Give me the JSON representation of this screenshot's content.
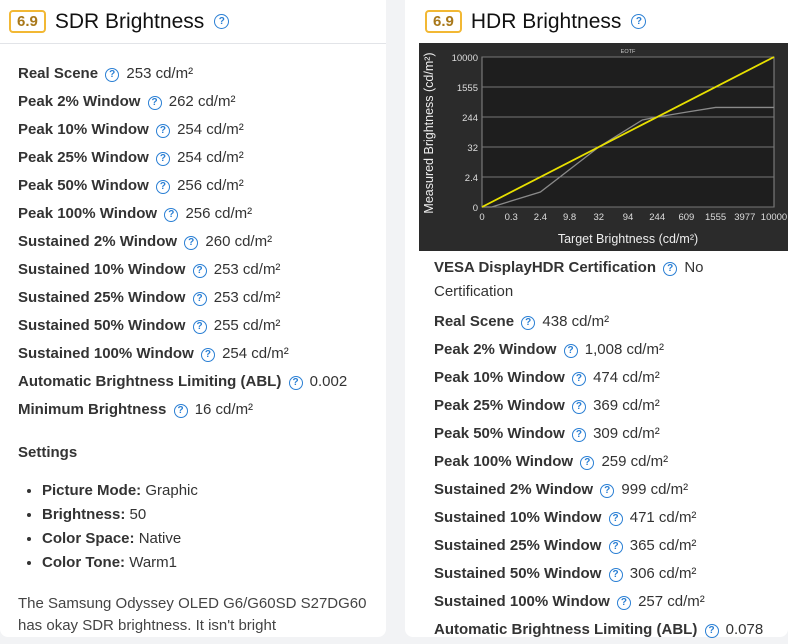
{
  "sdr": {
    "score": "6.9",
    "title": "SDR Brightness",
    "rows": [
      {
        "label": "Real Scene",
        "value": "253 cd/m²"
      },
      {
        "label": "Peak 2% Window",
        "value": "262 cd/m²"
      },
      {
        "label": "Peak 10% Window",
        "value": "254 cd/m²"
      },
      {
        "label": "Peak 25% Window",
        "value": "254 cd/m²"
      },
      {
        "label": "Peak 50% Window",
        "value": "256 cd/m²"
      },
      {
        "label": "Peak 100% Window",
        "value": "256 cd/m²"
      },
      {
        "label": "Sustained 2% Window",
        "value": "260 cd/m²"
      },
      {
        "label": "Sustained 10% Window",
        "value": "253 cd/m²"
      },
      {
        "label": "Sustained 25% Window",
        "value": "253 cd/m²"
      },
      {
        "label": "Sustained 50% Window",
        "value": "255 cd/m²"
      },
      {
        "label": "Sustained 100% Window",
        "value": "254 cd/m²"
      },
      {
        "label": "Automatic Brightness Limiting (ABL)",
        "value": "0.002"
      },
      {
        "label": "Minimum Brightness",
        "value": "16 cd/m²"
      }
    ],
    "settings_title": "Settings",
    "settings": [
      {
        "label": "Picture Mode:",
        "value": "Graphic"
      },
      {
        "label": "Brightness:",
        "value": "50"
      },
      {
        "label": "Color Space:",
        "value": "Native"
      },
      {
        "label": "Color Tone:",
        "value": "Warm1"
      }
    ],
    "paragraph": "The Samsung Odyssey OLED G6/G60SD S27DG60 has okay SDR brightness. It isn't bright"
  },
  "hdr": {
    "score": "6.9",
    "title": "HDR Brightness",
    "cert_label": "VESA DisplayHDR Certification",
    "cert_value": "No Certification",
    "rows": [
      {
        "label": "Real Scene",
        "value": "438 cd/m²"
      },
      {
        "label": "Peak 2% Window",
        "value": "1,008 cd/m²"
      },
      {
        "label": "Peak 10% Window",
        "value": "474 cd/m²"
      },
      {
        "label": "Peak 25% Window",
        "value": "369 cd/m²"
      },
      {
        "label": "Peak 50% Window",
        "value": "309 cd/m²"
      },
      {
        "label": "Peak 100% Window",
        "value": "259 cd/m²"
      },
      {
        "label": "Sustained 2% Window",
        "value": "999 cd/m²"
      },
      {
        "label": "Sustained 10% Window",
        "value": "471 cd/m²"
      },
      {
        "label": "Sustained 25% Window",
        "value": "365 cd/m²"
      },
      {
        "label": "Sustained 50% Window",
        "value": "306 cd/m²"
      },
      {
        "label": "Sustained 100% Window",
        "value": "257 cd/m²"
      },
      {
        "label": "Automatic Brightness Limiting (ABL)",
        "value": "0.078"
      }
    ]
  },
  "chart_data": {
    "type": "line",
    "title": "EOTF",
    "xlabel": "Target Brightness (cd/m²)",
    "ylabel": "Measured Brightness (cd/m²)",
    "x_ticks": [
      "0",
      "0.3",
      "2.4",
      "9.8",
      "32",
      "94",
      "244",
      "609",
      "1555",
      "3977",
      "10000"
    ],
    "y_ticks": [
      "0",
      "2.4",
      "32",
      "244",
      "1555",
      "10000"
    ],
    "grid": true,
    "series": [
      {
        "color": "#e8e000",
        "points": [
          [
            0,
            0
          ],
          [
            10000,
            10000
          ]
        ]
      },
      {
        "color": "#8a8a8a",
        "points": [
          [
            0,
            0
          ],
          [
            0.1,
            0
          ],
          [
            2.4,
            1.2
          ],
          [
            32,
            32
          ],
          [
            150,
            200
          ],
          [
            244,
            244
          ],
          [
            609,
            330
          ],
          [
            1555,
            440
          ],
          [
            3977,
            440
          ],
          [
            10000,
            440
          ]
        ]
      }
    ]
  },
  "colors": {
    "badge": "#f2b834",
    "help": "#2a7fd4"
  }
}
